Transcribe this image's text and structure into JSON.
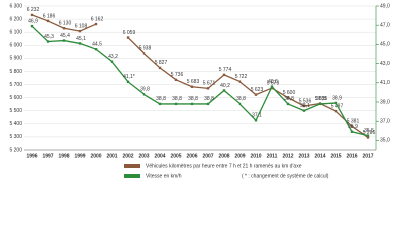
{
  "chart_data": {
    "type": "line",
    "categories": [
      "1996",
      "1997",
      "1998",
      "1999",
      "2000",
      "2001",
      "2002",
      "2003",
      "2004",
      "2005",
      "2006",
      "2007",
      "2008",
      "2009",
      "2010",
      "2011",
      "2012",
      "2013",
      "2014",
      "2015",
      "2016",
      "2017"
    ],
    "series": [
      {
        "name": "Véhicules kilomètres par heure entre 7 h et 21 h ramenés au km d'axe",
        "color": "#8b5a3c",
        "values": [
          6232,
          6186,
          6130,
          6108,
          6162,
          null,
          6059,
          5938,
          5827,
          5736,
          5683,
          5671,
          5774,
          5722,
          5623,
          5673,
          5600,
          5536,
          5555,
          5497,
          5381,
          5296
        ],
        "value_labels": [
          "6 232",
          "6 186",
          "6 130",
          "6 108",
          "6 162",
          null,
          "6 059",
          "5 938",
          "5 827",
          "5 736",
          "5 683",
          "5 671",
          "5 774",
          "5 722",
          "5 623",
          "5 673",
          "5 600",
          "5 536",
          "5 555",
          "5 497",
          "5 381",
          "5 296"
        ]
      },
      {
        "name": "Vitesse en km/h",
        "color": "#2e8b3a",
        "axis": "y2",
        "values": [
          46.9,
          45.3,
          45.4,
          45.1,
          44.5,
          43.2,
          41.1,
          39.8,
          38.8,
          38.8,
          38.8,
          38.8,
          40.2,
          38.8,
          37.1,
          40.6,
          38.8,
          38.1,
          38.8,
          38.9,
          35.9,
          35.5
        ],
        "value_labels": [
          "46,9",
          "45,3",
          "45,4",
          "45,1",
          "44,5",
          "43,2",
          "41,1*",
          "39,8",
          "38,8",
          "38,8",
          "38,8",
          "38,8",
          "40,2",
          "38,8",
          "37,1",
          "40,6",
          "38,8",
          "38,1",
          "38,8",
          "38,9",
          "35,9",
          "35,5"
        ]
      }
    ],
    "note": "( * : changement de système de calcul)",
    "ylim": [
      5200,
      6300
    ],
    "yticks": [
      {
        "value": 5200,
        "label": "5 200"
      },
      {
        "value": 5300,
        "label": "5 300"
      },
      {
        "value": 5400,
        "label": "5 400"
      },
      {
        "value": 5500,
        "label": "5 500"
      },
      {
        "value": 5600,
        "label": "5 600"
      },
      {
        "value": 5700,
        "label": "5 700"
      },
      {
        "value": 5800,
        "label": "5 800"
      },
      {
        "value": 5900,
        "label": "5 900"
      },
      {
        "value": 6000,
        "label": "6 000"
      },
      {
        "value": 6100,
        "label": "6 100"
      },
      {
        "value": 6200,
        "label": "6 200"
      },
      {
        "value": 6300,
        "label": "6 300"
      }
    ],
    "y2lim": [
      34,
      49
    ],
    "y2ticks": [
      {
        "value": 35,
        "label": "35,0"
      },
      {
        "value": 37,
        "label": "37,0"
      },
      {
        "value": 39,
        "label": "39,0"
      },
      {
        "value": 41,
        "label": "41,0"
      },
      {
        "value": 43,
        "label": "43,0"
      },
      {
        "value": 45,
        "label": "45,0"
      },
      {
        "value": 47,
        "label": "47,0"
      },
      {
        "value": 49,
        "label": "49,0"
      }
    ],
    "grid": true
  }
}
